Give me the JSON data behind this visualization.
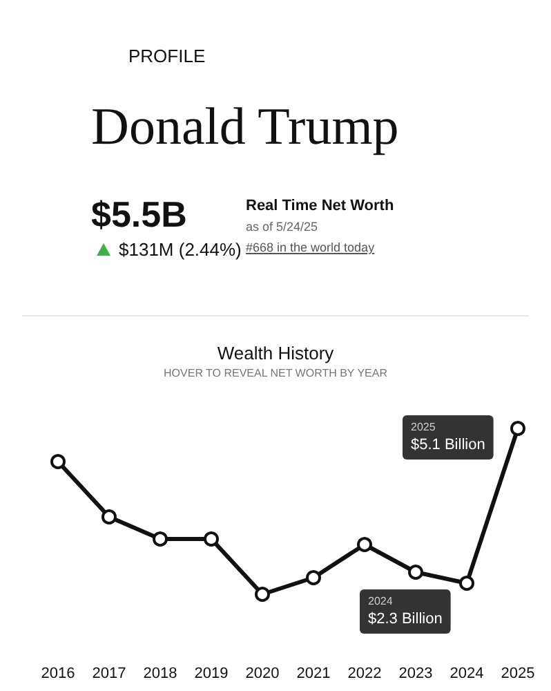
{
  "chart_data": {
    "type": "line",
    "title": "Wealth History",
    "subtitle": "HOVER TO REVEAL NET WORTH BY YEAR",
    "annotations": [
      "PROFILE",
      "Donald Trump",
      "$5.5B",
      "$131M (2.44%)",
      "Real Time Net Worth",
      "as of 5/24/25",
      "#668 in the world today"
    ],
    "categories": [
      "2016",
      "2017",
      "2018",
      "2019",
      "2020",
      "2021",
      "2022",
      "2023",
      "2024",
      "2025"
    ],
    "series": [
      {
        "color": "#111111",
        "values": [
          4.5,
          3.5,
          3.1,
          3.1,
          2.1,
          2.4,
          3.0,
          2.5,
          2.3,
          5.1
        ],
        "value_labels": [
          null,
          null,
          null,
          null,
          null,
          null,
          null,
          null,
          "$2.3 Billion",
          "$5.1 Billion"
        ]
      }
    ],
    "marker": "circle",
    "line_style": "solid",
    "grid": false
  }
}
